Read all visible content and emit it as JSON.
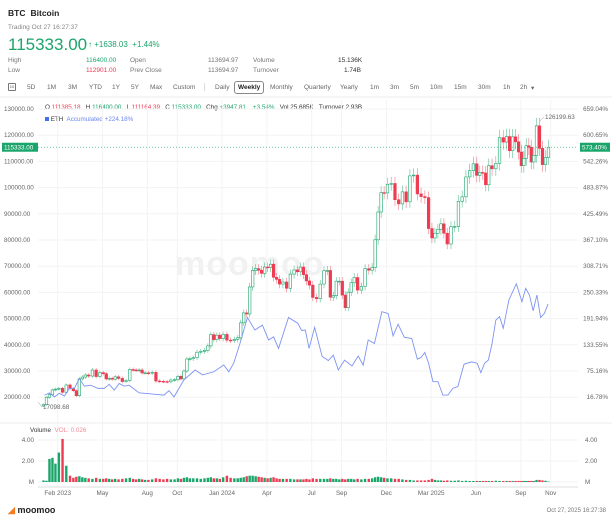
{
  "header": {
    "symbol": "BTC",
    "name": "Bitcoin",
    "trading": "Trading Oct 27 16:27:37",
    "price": "115333.00",
    "arrow": "arrow-up-icon",
    "change": "+1638.03",
    "change_pct": "+1.44%"
  },
  "stats": [
    {
      "label": "High",
      "value": "116400.00",
      "color": "green"
    },
    {
      "label": "Low",
      "value": "112901.00",
      "color": "red"
    },
    {
      "label": "Open",
      "value": "113694.97"
    },
    {
      "label": "Prev Close",
      "value": "113694.97"
    },
    {
      "label": "Volume",
      "value": "15.136K"
    },
    {
      "label": "Turnover",
      "value": "1.74B"
    }
  ],
  "ranges": [
    "5D",
    "1M",
    "3M",
    "YTD",
    "1Y",
    "5Y",
    "Max",
    "Custom"
  ],
  "periods": [
    "Daily",
    "Weekly",
    "Monthly",
    "Quarterly",
    "Yearly",
    "1m",
    "3m",
    "5m",
    "10m",
    "15m",
    "30m",
    "1h",
    "2h"
  ],
  "selected_period": "Weekly",
  "calendar_icon": "10",
  "ohlc": {
    "o_label": "O",
    "o": "111385.18",
    "h_label": "H",
    "h": "116400.00",
    "l_label": "L",
    "l": "111164.39",
    "c_label": "C",
    "c": "115333.00",
    "chg_label": "Chg",
    "chg": "+3947.81",
    "chg_pct": "+3.54%",
    "vol_label": "Vol",
    "vol": "25.685K",
    "turnover_label": "Turnover",
    "turnover": "2.93B"
  },
  "compare": {
    "symbol": "ETH",
    "text": "Accumulated +224.18%",
    "color": "#6b86f5"
  },
  "colors": {
    "up": "#1aa56b",
    "down": "#ee3b52",
    "eth": "#7d93f2"
  },
  "watermark": "moomoo",
  "chart_data": {
    "type": "candlestick",
    "price_axis": {
      "ticks": [
        "130000.00",
        "120000.00",
        "110000.00",
        "100000.00",
        "90000.00",
        "80000.00",
        "70000.00",
        "60000.00",
        "50000.00",
        "40000.00",
        "30000.00",
        "20000.00"
      ],
      "range": [
        20000,
        130000
      ]
    },
    "pct_axis": {
      "ticks": [
        "659.04%",
        "600.65%",
        "542.26%",
        "483.87%",
        "425.49%",
        "367.10%",
        "308.71%",
        "250.33%",
        "191.94%",
        "133.55%",
        "75.16%",
        "16.78%"
      ]
    },
    "current_price_tag": "115333.00",
    "current_pct_tag": "573.40%",
    "max_label": "126199.63",
    "min_label": "17098.68",
    "x_ticks": [
      "Feb 2023",
      "May",
      "Aug",
      "Oct",
      "Jan 2024",
      "Apr",
      "Jul",
      "Sep",
      "Dec",
      "Mar 2025",
      "Jun",
      "Sep",
      "Nov"
    ],
    "x_tick_months": [
      "2023-02",
      "2023-05",
      "2023-08",
      "2023-10",
      "2024-01",
      "2024-04",
      "2024-07",
      "2024-09",
      "2024-12",
      "2025-03",
      "2025-06",
      "2025-09",
      "2025-11"
    ],
    "first_open": 16550,
    "weeks": [
      {
        "m": "2023-01",
        "c": [
          17100,
          19900,
          20900,
          22700,
          23000
        ],
        "v": [
          0.15,
          0.12,
          2.2,
          2.3,
          1.75
        ]
      },
      {
        "m": "2023-02",
        "c": [
          23300,
          21800,
          24600,
          23200
        ],
        "v": [
          2.8,
          4.1,
          1.55,
          0.6
        ]
      },
      {
        "m": "2023-03",
        "c": [
          22400,
          20500,
          26900,
          27600,
          28400
        ],
        "v": [
          0.4,
          0.5,
          0.55,
          0.45,
          0.4
        ]
      },
      {
        "m": "2023-04",
        "c": [
          28000,
          30300,
          27800,
          29300
        ],
        "v": [
          0.35,
          0.3,
          0.4,
          0.3
        ]
      },
      {
        "m": "2023-05",
        "c": [
          28900,
          26900,
          27100,
          26800,
          27700
        ],
        "v": [
          0.3,
          0.35,
          0.3,
          0.25,
          0.3
        ]
      },
      {
        "m": "2023-06",
        "c": [
          27100,
          25900,
          26300,
          30500
        ],
        "v": [
          0.25,
          0.3,
          0.35,
          0.4
        ]
      },
      {
        "m": "2023-07",
        "c": [
          30300,
          30200,
          30300,
          29200,
          29200
        ],
        "v": [
          0.3,
          0.25,
          0.3,
          0.25,
          0.2
        ]
      },
      {
        "m": "2023-08",
        "c": [
          29100,
          29400,
          26100,
          26000
        ],
        "v": [
          0.2,
          0.25,
          0.35,
          0.3
        ]
      },
      {
        "m": "2023-09",
        "c": [
          25900,
          25800,
          26500,
          26600
        ],
        "v": [
          0.25,
          0.3,
          0.25,
          0.25
        ]
      },
      {
        "m": "2023-10",
        "c": [
          27900,
          26900,
          29900,
          34500,
          34600
        ],
        "v": [
          0.35,
          0.3,
          0.4,
          0.45,
          0.35
        ]
      },
      {
        "m": "2023-11",
        "c": [
          35000,
          37100,
          37400,
          37800
        ],
        "v": [
          0.35,
          0.35,
          0.3,
          0.35
        ]
      },
      {
        "m": "2023-12",
        "c": [
          39500,
          43800,
          41900,
          43600,
          42300
        ],
        "v": [
          0.4,
          0.45,
          0.35,
          0.35,
          0.3
        ]
      },
      {
        "m": "2024-01",
        "c": [
          43900,
          41700,
          41600,
          42000
        ],
        "v": [
          0.45,
          0.6,
          0.4,
          0.35
        ]
      },
      {
        "m": "2024-02",
        "c": [
          42600,
          48300,
          52100,
          51700,
          62000
        ],
        "v": [
          0.35,
          0.4,
          0.45,
          0.55,
          0.6
        ]
      },
      {
        "m": "2024-03",
        "c": [
          68300,
          69000,
          68400,
          67200,
          69600
        ],
        "v": [
          0.6,
          0.55,
          0.5,
          0.45,
          0.4
        ]
      },
      {
        "m": "2024-04",
        "c": [
          69400,
          70700,
          65700,
          64900,
          63100
        ],
        "v": [
          0.35,
          0.4,
          0.45,
          0.35,
          0.3
        ]
      },
      {
        "m": "2024-05",
        "c": [
          63900,
          61500,
          66900,
          68500
        ],
        "v": [
          0.3,
          0.3,
          0.3,
          0.25
        ]
      },
      {
        "m": "2024-06",
        "c": [
          67800,
          69600,
          66700,
          64300,
          62700
        ],
        "v": [
          0.25,
          0.25,
          0.25,
          0.3,
          0.25
        ]
      },
      {
        "m": "2024-07",
        "c": [
          58000,
          57500,
          63100,
          68200
        ],
        "v": [
          0.35,
          0.3,
          0.3,
          0.3
        ]
      },
      {
        "m": "2024-08",
        "c": [
          68300,
          58100,
          58700,
          64200,
          64200
        ],
        "v": [
          0.3,
          0.35,
          0.3,
          0.3,
          0.25
        ]
      },
      {
        "m": "2024-09",
        "c": [
          58900,
          54100,
          60000,
          63600,
          65600
        ],
        "v": [
          0.3,
          0.25,
          0.3,
          0.3,
          0.25
        ]
      },
      {
        "m": "2024-10",
        "c": [
          60800,
          62200,
          69000,
          68400
        ],
        "v": [
          0.3,
          0.25,
          0.3,
          0.3
        ]
      },
      {
        "m": "2024-11",
        "c": [
          69400,
          80000,
          90600,
          98000,
          97900
        ],
        "v": [
          0.35,
          0.45,
          0.5,
          0.45,
          0.4
        ]
      },
      {
        "m": "2024-12",
        "c": [
          101200,
          101500,
          95300,
          93700
        ],
        "v": [
          0.35,
          0.35,
          0.3,
          0.3
        ]
      },
      {
        "m": "2025-01",
        "c": [
          98300,
          94500,
          104400,
          104700
        ],
        "v": [
          0.25,
          0.2,
          0.2,
          0.15
        ]
      },
      {
        "m": "2025-02",
        "c": [
          97500,
          96500,
          96100,
          84300
        ],
        "v": [
          0.15,
          0.15,
          0.15,
          0.2
        ]
      },
      {
        "m": "2025-03",
        "c": [
          80700,
          82500,
          84000,
          86100,
          82500
        ],
        "v": [
          0.3,
          0.2,
          0.15,
          0.15,
          0.12
        ]
      },
      {
        "m": "2025-04",
        "c": [
          78400,
          85000,
          85100,
          94700
        ],
        "v": [
          0.15,
          0.12,
          0.12,
          0.15
        ]
      },
      {
        "m": "2025-05",
        "c": [
          96400,
          104000,
          106400,
          109000
        ],
        "v": [
          0.1,
          0.12,
          0.1,
          0.1
        ]
      },
      {
        "m": "2025-06",
        "c": [
          104600,
          105700,
          105500,
          101000,
          108300
        ],
        "v": [
          0.1,
          0.1,
          0.1,
          0.1,
          0.1
        ]
      },
      {
        "m": "2025-07",
        "c": [
          107100,
          109200,
          119000,
          117300
        ],
        "v": [
          0.1,
          0.12,
          0.1,
          0.1
        ]
      },
      {
        "m": "2025-08",
        "c": [
          119400,
          114000,
          119300,
          117400,
          113500
        ],
        "v": [
          0.1,
          0.1,
          0.1,
          0.1,
          0.1
        ]
      },
      {
        "m": "2025-09",
        "c": [
          108300,
          111100,
          115900,
          115300,
          109700,
          112200
        ],
        "v": [
          0.1,
          0.1,
          0.1,
          0.1,
          0.1,
          0.1
        ]
      },
      {
        "m": "2025-10",
        "c": [
          123500,
          114900,
          108700,
          111400,
          115333
        ],
        "v": [
          0.2,
          0.2,
          0.15,
          0.12,
          0.05
        ]
      }
    ],
    "eth_accumulated_pct": [
      {
        "m": "2023-01",
        "p": [
          21,
          26,
          17
        ]
      },
      {
        "m": "2023-02",
        "p": [
          25,
          19,
          36
        ]
      },
      {
        "m": "2023-03",
        "p": [
          36,
          58,
          41
        ]
      },
      {
        "m": "2023-04",
        "p": [
          43,
          36
        ]
      },
      {
        "m": "2023-05",
        "p": [
          36,
          45,
          32
        ]
      },
      {
        "m": "2023-06",
        "p": [
          47,
          41,
          43
        ]
      },
      {
        "m": "2023-07",
        "p": [
          26
        ]
      },
      {
        "m": "2023-08",
        "p": [
          23
        ]
      },
      {
        "m": "2023-09",
        "p": [
          21,
          31,
          17
        ]
      },
      {
        "m": "2023-10",
        "p": [
          55
        ]
      },
      {
        "m": "2023-11",
        "p": [
          77,
          66
        ]
      },
      {
        "m": "2023-12",
        "p": [
          73
        ]
      },
      {
        "m": "2024-01",
        "p": [
          88,
          73,
          92
        ]
      },
      {
        "m": "2024-02",
        "p": [
          136,
          194
        ]
      },
      {
        "m": "2024-03",
        "p": [
          166,
          177
        ]
      },
      {
        "m": "2024-04",
        "p": [
          144,
          151,
          125
        ]
      },
      {
        "m": "2024-05",
        "p": [
          194
        ]
      },
      {
        "m": "2024-06",
        "p": [
          181,
          165,
          166,
          125
        ]
      },
      {
        "m": "2024-07",
        "p": [
          172,
          107
        ]
      },
      {
        "m": "2024-08",
        "p": [
          98,
          110,
          77
        ]
      },
      {
        "m": "2024-09",
        "p": [
          99,
          86
        ]
      },
      {
        "m": "2024-10",
        "p": [
          108,
          88,
          144
        ]
      },
      {
        "m": "2024-11",
        "p": [
          136,
          207
        ]
      },
      {
        "m": "2024-12",
        "p": [
          203,
          153,
          179
        ]
      },
      {
        "m": "2025-01",
        "p": [
          150,
          147
        ]
      },
      {
        "m": "2025-02",
        "p": [
          101,
          105,
          116,
          92
        ]
      },
      {
        "m": "2025-03",
        "p": [
          51,
          51,
          21
        ]
      },
      {
        "m": "2025-04",
        "p": [
          21,
          36,
          40
        ]
      },
      {
        "m": "2025-05",
        "p": [
          90,
          95
        ]
      },
      {
        "m": "2025-06",
        "p": [
          92,
          71,
          92,
          99
        ]
      },
      {
        "m": "2025-07",
        "p": [
          136,
          188,
          196,
          170
        ]
      },
      {
        "m": "2025-08",
        "p": [
          233,
          269
        ]
      },
      {
        "m": "2025-09",
        "p": [
          229,
          259,
          244,
          209
        ]
      },
      {
        "m": "2025-10",
        "p": [
          244,
          194,
          203,
          224.18
        ]
      }
    ],
    "volume": {
      "title": "Volume",
      "indicator": "VOL: 0.026",
      "ticks": [
        "4.00",
        "2.00",
        "M"
      ],
      "range": [
        0,
        4
      ]
    }
  },
  "footer": {
    "brand": "moomoo",
    "timestamp": "Oct 27, 2025 16:27:38"
  }
}
